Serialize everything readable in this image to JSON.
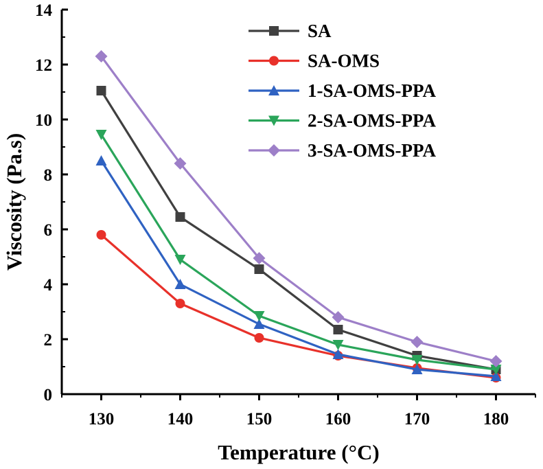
{
  "chart_data": {
    "type": "line",
    "xlabel": "Temperature (°C)",
    "ylabel": "Viscosity (Pa.s)",
    "xlim": [
      125,
      185
    ],
    "ylim": [
      0,
      14
    ],
    "xticks": [
      130,
      140,
      150,
      160,
      170,
      180
    ],
    "yticks": [
      0,
      2,
      4,
      6,
      8,
      10,
      12,
      14
    ],
    "legend_position": "top-right",
    "grid": false,
    "x": [
      130,
      140,
      150,
      160,
      170,
      180
    ],
    "series": [
      {
        "name": "SA",
        "color": "#404040",
        "marker": "square",
        "values": [
          11.05,
          6.45,
          4.55,
          2.35,
          1.4,
          0.9
        ]
      },
      {
        "name": "SA-OMS",
        "color": "#e8312a",
        "marker": "circle",
        "values": [
          5.8,
          3.3,
          2.05,
          1.4,
          0.95,
          0.6
        ]
      },
      {
        "name": "1-SA-OMS-PPA",
        "color": "#2f62c2",
        "marker": "triangle-up",
        "values": [
          8.5,
          4.0,
          2.55,
          1.45,
          0.9,
          0.65
        ]
      },
      {
        "name": "2-SA-OMS-PPA",
        "color": "#2aa55a",
        "marker": "triangle-down",
        "values": [
          9.45,
          4.9,
          2.85,
          1.8,
          1.25,
          0.9
        ]
      },
      {
        "name": "3-SA-OMS-PPA",
        "color": "#9d7fc8",
        "marker": "diamond",
        "values": [
          12.3,
          8.4,
          4.95,
          2.8,
          1.9,
          1.2
        ]
      }
    ]
  }
}
